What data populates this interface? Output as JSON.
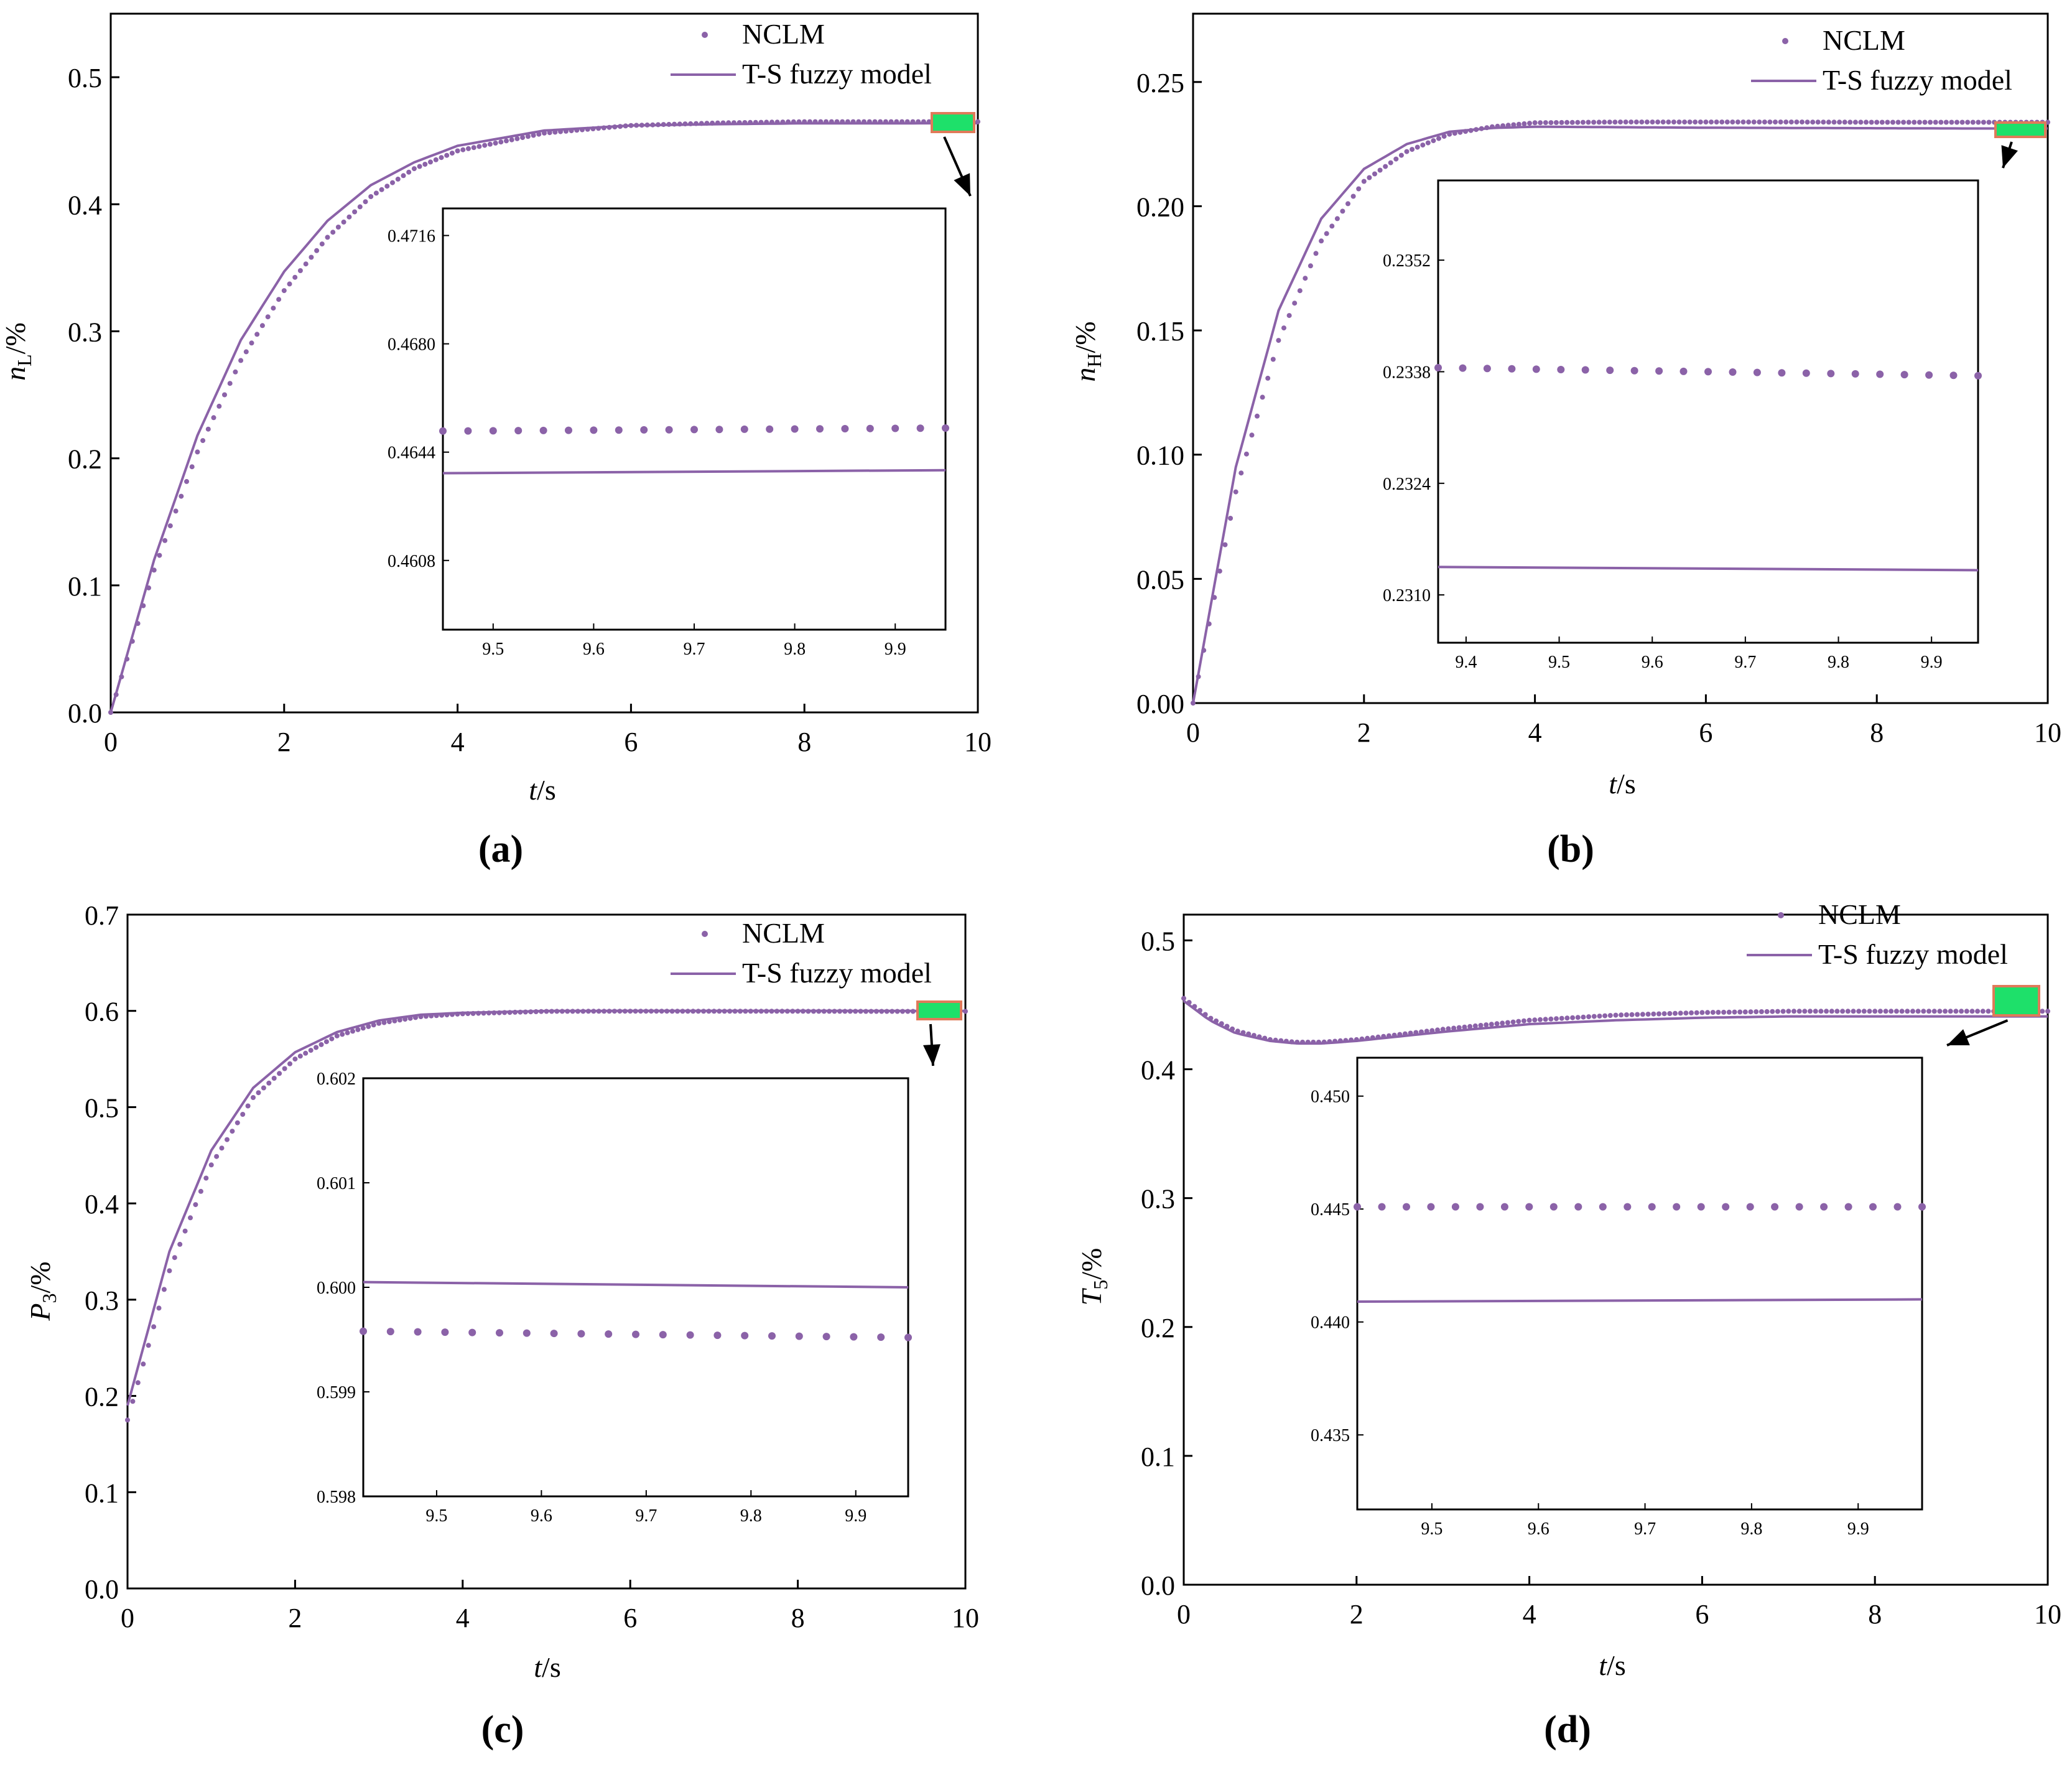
{
  "colors": {
    "series": "#8b62a8",
    "zoom_fill": "#1ee06a",
    "zoom_border": "#e07a5a"
  },
  "chart_data": [
    {
      "type": "line",
      "panel_label": "(a)",
      "xlabel": {
        "italic": "t",
        "rest": "/s"
      },
      "ylabel": {
        "italic": "n",
        "sub": "L",
        "rest": "/%"
      },
      "xlim": [
        0,
        10
      ],
      "ylim": [
        0,
        0.55
      ],
      "xticks": [
        "0",
        "2",
        "4",
        "6",
        "8",
        "10"
      ],
      "yticks": [
        "0.0",
        "0.1",
        "0.2",
        "0.3",
        "0.4",
        "0.5"
      ],
      "legend": {
        "dots": "NCLM",
        "line": "T-S fuzzy model",
        "position": "top-right"
      },
      "series": [
        {
          "name": "NCLM",
          "style": "dots",
          "x": [
            0,
            0.5,
            1,
            1.5,
            2,
            2.5,
            3,
            3.5,
            4,
            5,
            6,
            7,
            8,
            9,
            10
          ],
          "y": [
            0,
            0.112,
            0.205,
            0.277,
            0.332,
            0.374,
            0.406,
            0.428,
            0.442,
            0.456,
            0.462,
            0.464,
            0.465,
            0.465,
            0.465
          ]
        },
        {
          "name": "T-S fuzzy model",
          "style": "line",
          "x": [
            0,
            0.5,
            1,
            1.5,
            2,
            2.5,
            3,
            3.5,
            4,
            5,
            6,
            7,
            8,
            9,
            10
          ],
          "y": [
            0,
            0.12,
            0.218,
            0.293,
            0.347,
            0.387,
            0.415,
            0.433,
            0.446,
            0.458,
            0.462,
            0.463,
            0.4637,
            0.4637,
            0.4638
          ]
        }
      ],
      "inset": {
        "xlim": [
          9.45,
          9.95
        ],
        "ylim": [
          0.4585,
          0.4725
        ],
        "xticks": [
          "9.5",
          "9.6",
          "9.7",
          "9.8",
          "9.9"
        ],
        "yticks": [
          "0.4608",
          "0.4644",
          "0.4680",
          "0.4716"
        ],
        "series": [
          {
            "name": "NCLM",
            "style": "dots",
            "x": [
              9.45,
              9.95
            ],
            "y": [
              0.4651,
              0.4652
            ]
          },
          {
            "name": "T-S fuzzy model",
            "style": "line",
            "x": [
              9.45,
              9.95
            ],
            "y": [
              0.4637,
              0.4638
            ]
          }
        ]
      }
    },
    {
      "type": "line",
      "panel_label": "(b)",
      "xlabel": {
        "italic": "t",
        "rest": "/s"
      },
      "ylabel": {
        "italic": "n",
        "sub": "H",
        "rest": "/%"
      },
      "xlim": [
        0,
        10
      ],
      "ylim": [
        0,
        0.2775
      ],
      "xticks": [
        "0",
        "2",
        "4",
        "6",
        "8",
        "10"
      ],
      "yticks": [
        "0.00",
        "0.05",
        "0.10",
        "0.15",
        "0.20",
        "0.25"
      ],
      "legend": {
        "dots": "NCLM",
        "line": "T-S fuzzy model",
        "position": "top-right"
      },
      "series": [
        {
          "name": "NCLM",
          "style": "dots",
          "x": [
            0,
            0.5,
            1,
            1.5,
            2,
            2.5,
            3,
            3.5,
            4,
            5,
            6,
            7,
            8,
            9,
            10
          ],
          "y": [
            0,
            0.085,
            0.146,
            0.186,
            0.21,
            0.222,
            0.229,
            0.232,
            0.2336,
            0.2339,
            0.2339,
            0.2339,
            0.2338,
            0.2338,
            0.2338
          ]
        },
        {
          "name": "T-S fuzzy model",
          "style": "line",
          "x": [
            0,
            0.5,
            1,
            1.5,
            2,
            2.5,
            3,
            3.5,
            4,
            5,
            6,
            7,
            8,
            9,
            10
          ],
          "y": [
            0,
            0.095,
            0.158,
            0.195,
            0.215,
            0.225,
            0.23,
            0.2315,
            0.232,
            0.2318,
            0.2316,
            0.2315,
            0.2314,
            0.2313,
            0.2313
          ]
        }
      ],
      "inset": {
        "xlim": [
          9.37,
          9.95
        ],
        "ylim": [
          0.2304,
          0.2362
        ],
        "xticks": [
          "9.4",
          "9.5",
          "9.6",
          "9.7",
          "9.8",
          "9.9"
        ],
        "yticks": [
          "0.2310",
          "0.2324",
          "0.2338",
          "0.2352"
        ],
        "series": [
          {
            "name": "NCLM",
            "style": "dots",
            "x": [
              9.37,
              9.95
            ],
            "y": [
              0.23385,
              0.23375
            ]
          },
          {
            "name": "T-S fuzzy model",
            "style": "line",
            "x": [
              9.37,
              9.95
            ],
            "y": [
              0.23135,
              0.23131
            ]
          }
        ]
      }
    },
    {
      "type": "line",
      "panel_label": "(c)",
      "xlabel": {
        "italic": "t",
        "rest": "/s"
      },
      "ylabel": {
        "italic": "P",
        "sub": "3",
        "rest": "/%"
      },
      "xlim": [
        0,
        10
      ],
      "ylim": [
        0,
        0.7
      ],
      "xticks": [
        "0",
        "2",
        "4",
        "6",
        "8",
        "10"
      ],
      "yticks": [
        "0.0",
        "0.1",
        "0.2",
        "0.3",
        "0.4",
        "0.5",
        "0.6",
        "0.7"
      ],
      "legend": {
        "dots": "NCLM",
        "line": "T-S fuzzy model",
        "position": "top-right"
      },
      "series": [
        {
          "name": "NCLM",
          "style": "dots",
          "x": [
            0,
            0.5,
            1,
            1.5,
            2,
            2.5,
            3,
            3.5,
            4,
            5,
            6,
            7,
            8,
            9,
            10
          ],
          "y": [
            0.175,
            0.33,
            0.44,
            0.51,
            0.55,
            0.574,
            0.587,
            0.594,
            0.597,
            0.5995,
            0.5997,
            0.5996,
            0.5996,
            0.5995,
            0.5995
          ]
        },
        {
          "name": "T-S fuzzy model",
          "style": "line",
          "x": [
            0,
            0.5,
            1,
            1.5,
            2,
            2.5,
            3,
            3.5,
            4,
            5,
            6,
            7,
            8,
            9,
            10
          ],
          "y": [
            0.19,
            0.35,
            0.455,
            0.52,
            0.557,
            0.578,
            0.59,
            0.596,
            0.598,
            0.5999,
            0.6001,
            0.6001,
            0.6001,
            0.6,
            0.6
          ]
        }
      ],
      "inset": {
        "xlim": [
          9.43,
          9.95
        ],
        "ylim": [
          0.598,
          0.602
        ],
        "xticks": [
          "9.5",
          "9.6",
          "9.7",
          "9.8",
          "9.9"
        ],
        "yticks": [
          "0.598",
          "0.599",
          "0.600",
          "0.601",
          "0.602"
        ],
        "series": [
          {
            "name": "NCLM",
            "style": "dots",
            "x": [
              9.43,
              9.95
            ],
            "y": [
              0.59958,
              0.59952
            ]
          },
          {
            "name": "T-S fuzzy model",
            "style": "line",
            "x": [
              9.43,
              9.95
            ],
            "y": [
              0.60005,
              0.6
            ]
          }
        ]
      }
    },
    {
      "type": "line",
      "panel_label": "(d)",
      "xlabel": {
        "italic": "t",
        "rest": "/s"
      },
      "ylabel": {
        "italic": "T",
        "sub": "5",
        "rest": "/%"
      },
      "xlim": [
        0,
        10
      ],
      "ylim": [
        0,
        0.52
      ],
      "xticks": [
        "0",
        "2",
        "4",
        "6",
        "8",
        "10"
      ],
      "yticks": [
        "0.0",
        "0.1",
        "0.2",
        "0.3",
        "0.4",
        "0.5"
      ],
      "legend": {
        "dots": "NCLM",
        "line": "T-S fuzzy model",
        "position": "top-right"
      },
      "series": [
        {
          "name": "NCLM",
          "style": "dots",
          "x": [
            0,
            0.3,
            0.6,
            1,
            1.3,
            1.6,
            2,
            3,
            4,
            5,
            6,
            7,
            8,
            9,
            10
          ],
          "y": [
            0.455,
            0.44,
            0.43,
            0.423,
            0.421,
            0.421,
            0.423,
            0.431,
            0.438,
            0.442,
            0.444,
            0.445,
            0.445,
            0.445,
            0.445
          ]
        },
        {
          "name": "T-S fuzzy model",
          "style": "line",
          "x": [
            0,
            0.3,
            0.6,
            1,
            1.3,
            1.6,
            2,
            3,
            4,
            5,
            6,
            7,
            8,
            9,
            10
          ],
          "y": [
            0.453,
            0.438,
            0.428,
            0.422,
            0.42,
            0.42,
            0.422,
            0.429,
            0.435,
            0.438,
            0.44,
            0.441,
            0.441,
            0.441,
            0.441
          ]
        }
      ],
      "inset": {
        "xlim": [
          9.43,
          9.96
        ],
        "ylim": [
          0.4317,
          0.4517
        ],
        "xticks": [
          "9.5",
          "9.6",
          "9.7",
          "9.8",
          "9.9"
        ],
        "yticks": [
          "0.435",
          "0.440",
          "0.445",
          "0.450"
        ],
        "series": [
          {
            "name": "NCLM",
            "style": "dots",
            "x": [
              9.43,
              9.96
            ],
            "y": [
              0.4451,
              0.4451
            ]
          },
          {
            "name": "T-S fuzzy model",
            "style": "line",
            "x": [
              9.43,
              9.96
            ],
            "y": [
              0.4409,
              0.441
            ]
          }
        ]
      }
    }
  ]
}
